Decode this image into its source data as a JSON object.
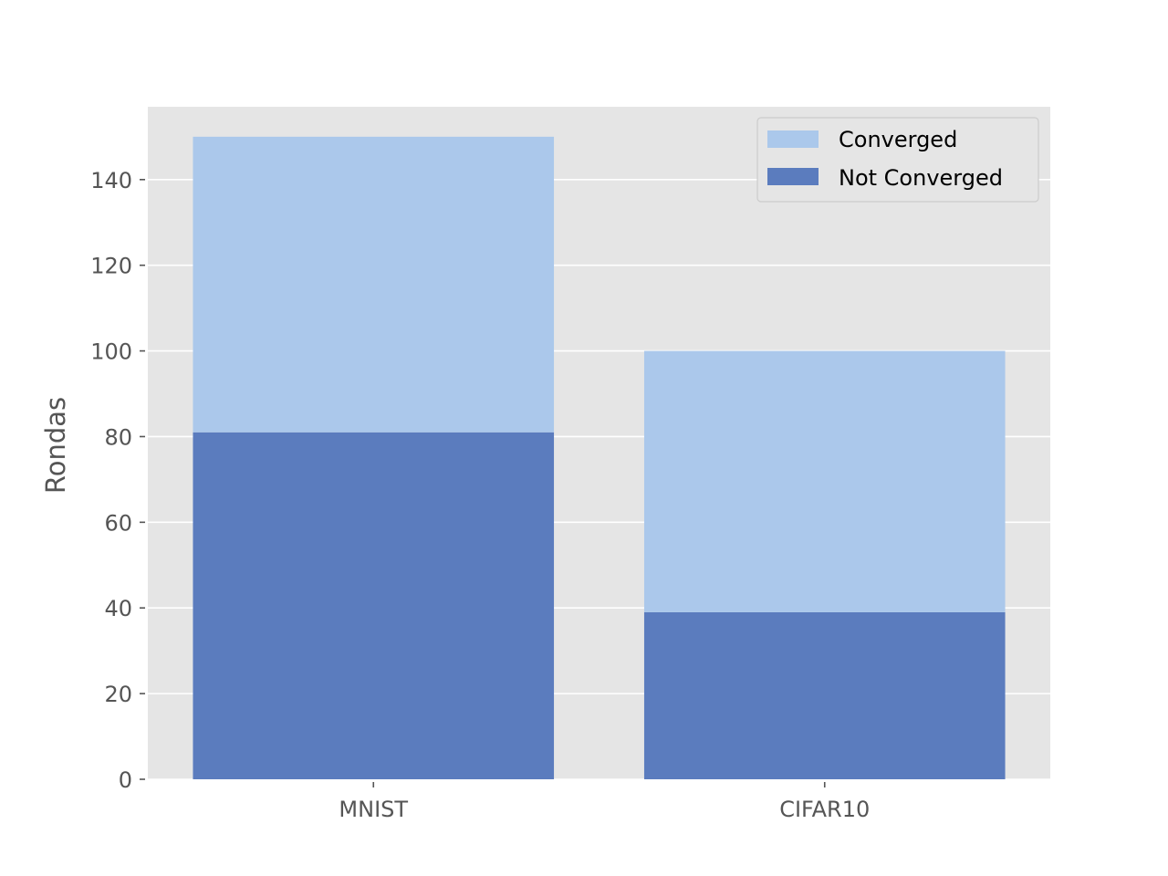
{
  "chart_data": {
    "type": "bar",
    "stacked": true,
    "categories": [
      "MNIST",
      "CIFAR10"
    ],
    "series": [
      {
        "name": "Not Converged",
        "values": [
          81,
          39
        ],
        "color": "#5b7cbe"
      },
      {
        "name": "Converged",
        "values": [
          69,
          61
        ],
        "color": "#abc8eb"
      }
    ],
    "totals": [
      150,
      100
    ],
    "ylabel": "Rondas",
    "xlabel": "",
    "ylim": [
      0,
      157
    ],
    "yticks": [
      0,
      20,
      40,
      60,
      80,
      100,
      120,
      140
    ],
    "grid": true,
    "legend": {
      "placement": "top-right",
      "entries": [
        {
          "label": "Converged",
          "color": "#abc8eb"
        },
        {
          "label": "Not Converged",
          "color": "#5b7cbe"
        }
      ]
    },
    "colors": {
      "plot_background": "#e5e5e5",
      "grid": "#ffffff",
      "text": "#555555"
    }
  }
}
